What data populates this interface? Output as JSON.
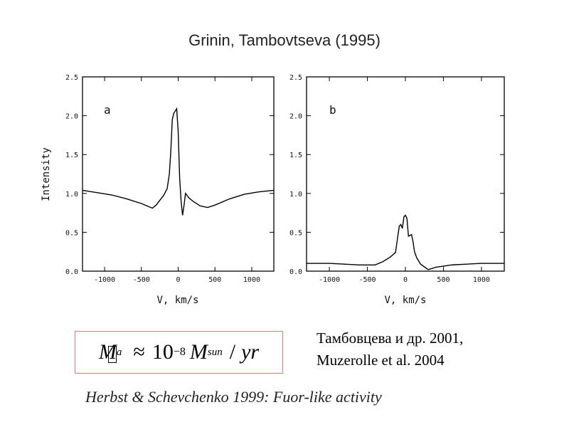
{
  "heading": "Grinin, Tambovtseva (1995)",
  "chart_data": [
    {
      "type": "line",
      "panel_label": "a",
      "xlabel": "V, km/s",
      "ylabel": "Intensity",
      "xlim": [
        -1300,
        1300
      ],
      "ylim": [
        0,
        2.5
      ],
      "x_ticks": [
        -1000,
        -500,
        0,
        500,
        1000
      ],
      "y_ticks": [
        "0.0",
        "0.5",
        "1.0",
        "1.5",
        "2.0",
        "2.5"
      ],
      "grid": false,
      "series": [
        {
          "x": [
            -1300,
            -1100,
            -900,
            -700,
            -500,
            -400,
            -350,
            -300,
            -250,
            -200,
            -150,
            -120,
            -100,
            -80,
            -60,
            -40,
            -20,
            0,
            20,
            40,
            60,
            80,
            100,
            150,
            200,
            300,
            400,
            500,
            700,
            900,
            1100,
            1300
          ],
          "y": [
            1.04,
            1.01,
            0.98,
            0.93,
            0.87,
            0.83,
            0.81,
            0.85,
            0.91,
            0.97,
            1.06,
            1.25,
            1.55,
            1.95,
            2.03,
            2.06,
            2.09,
            1.8,
            1.2,
            0.9,
            0.72,
            0.85,
            1.0,
            0.94,
            0.9,
            0.84,
            0.82,
            0.85,
            0.93,
            0.99,
            1.02,
            1.04
          ]
        }
      ]
    },
    {
      "type": "line",
      "panel_label": "b",
      "xlabel": "V, km/s",
      "ylabel": "",
      "xlim": [
        -1300,
        1300
      ],
      "ylim": [
        0,
        2.5
      ],
      "x_ticks": [
        -1000,
        -500,
        0,
        500,
        1000
      ],
      "y_ticks": [
        "0.0",
        "0.5",
        "1.0",
        "1.5",
        "2.0",
        "2.5"
      ],
      "grid": false,
      "series": [
        {
          "x": [
            -1300,
            -1000,
            -800,
            -600,
            -400,
            -300,
            -200,
            -130,
            -100,
            -80,
            -60,
            -40,
            -20,
            0,
            20,
            40,
            60,
            80,
            100,
            120,
            150,
            200,
            300,
            400,
            600,
            800,
            1000,
            1300
          ],
          "y": [
            0.1,
            0.1,
            0.09,
            0.08,
            0.08,
            0.12,
            0.18,
            0.24,
            0.45,
            0.58,
            0.6,
            0.55,
            0.7,
            0.72,
            0.68,
            0.45,
            0.46,
            0.47,
            0.38,
            0.25,
            0.17,
            0.09,
            0.02,
            0.05,
            0.08,
            0.09,
            0.1,
            0.1
          ]
        }
      ]
    }
  ],
  "formula": {
    "lhs": "M",
    "lhs_sub": "a",
    "approx": "≈",
    "base": "10",
    "exp": "−8",
    "m": "M",
    "m_sub": "sun",
    "slash": "/",
    "unit": "yr"
  },
  "refs": [
    "Тамбовцева и др. 2001,",
    "Muzerolle et al.  2004"
  ],
  "caption": "Herbst & Schevchenko 1999: Fuor-like activity"
}
